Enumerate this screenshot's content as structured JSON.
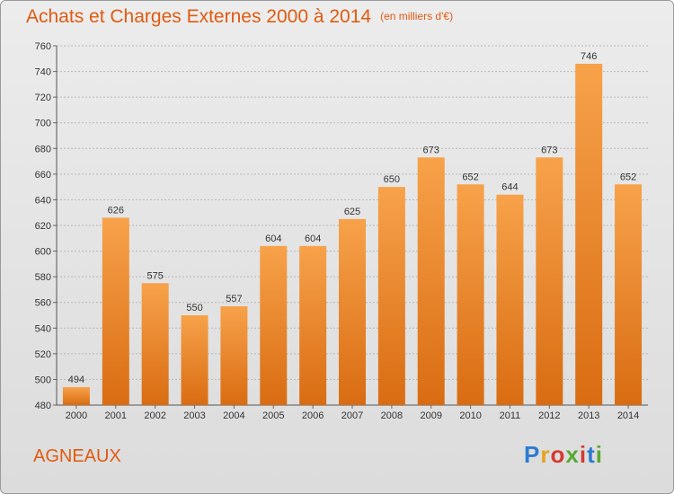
{
  "chart_data": {
    "type": "bar",
    "title": "Achats et Charges Externes 2000 à 2014",
    "subtitle": "(en milliers d'€)",
    "categories": [
      "2000",
      "2001",
      "2002",
      "2003",
      "2004",
      "2005",
      "2006",
      "2007",
      "2008",
      "2009",
      "2010",
      "2011",
      "2012",
      "2013",
      "2014"
    ],
    "values": [
      494,
      626,
      575,
      550,
      557,
      604,
      604,
      625,
      650,
      673,
      652,
      644,
      673,
      746,
      652
    ],
    "ylim": [
      480,
      760
    ],
    "yticks": [
      480,
      500,
      520,
      540,
      560,
      580,
      600,
      620,
      640,
      660,
      680,
      700,
      720,
      740,
      760
    ],
    "grid": true,
    "bar_color": "#f28a2c"
  },
  "footer": {
    "commune": "AGNEAUX",
    "logo_letters": [
      "P",
      "r",
      "o",
      "x",
      "i",
      "t",
      "i"
    ],
    "logo_colors": [
      "#2b7bd0",
      "#e8a21c",
      "#d43a2f",
      "#5aa832",
      "#d43a2f",
      "#2b7bd0",
      "#5aa832"
    ]
  }
}
